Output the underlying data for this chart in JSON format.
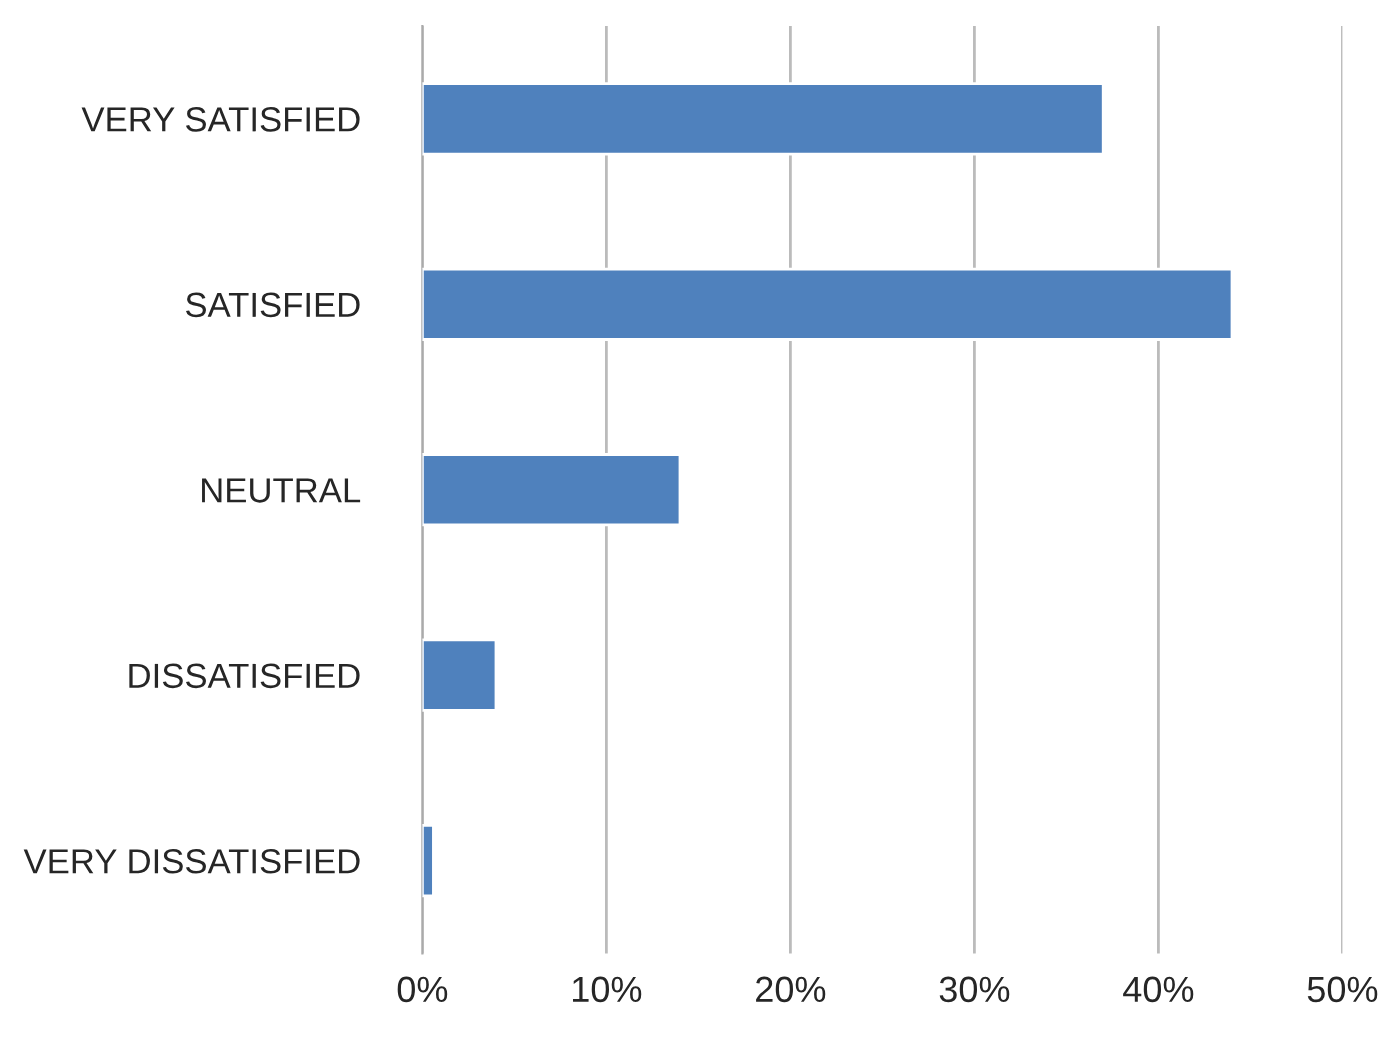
{
  "chart_data": {
    "type": "bar",
    "orientation": "horizontal",
    "categories": [
      "VERY SATISFIED",
      "SATISFIED",
      "NEUTRAL",
      "DISSATISFIED",
      "VERY DISSATISFIED"
    ],
    "values": [
      37,
      44,
      14,
      4,
      0.6
    ],
    "color": "#4f81bd",
    "xlim": [
      0,
      50
    ],
    "xticks": [
      {
        "value": 0,
        "label": "0%"
      },
      {
        "value": 10,
        "label": "10%"
      },
      {
        "value": 20,
        "label": "20%"
      },
      {
        "value": 30,
        "label": "30%"
      },
      {
        "value": 40,
        "label": "40%"
      },
      {
        "value": 50,
        "label": "50%"
      }
    ],
    "grid": "x"
  }
}
